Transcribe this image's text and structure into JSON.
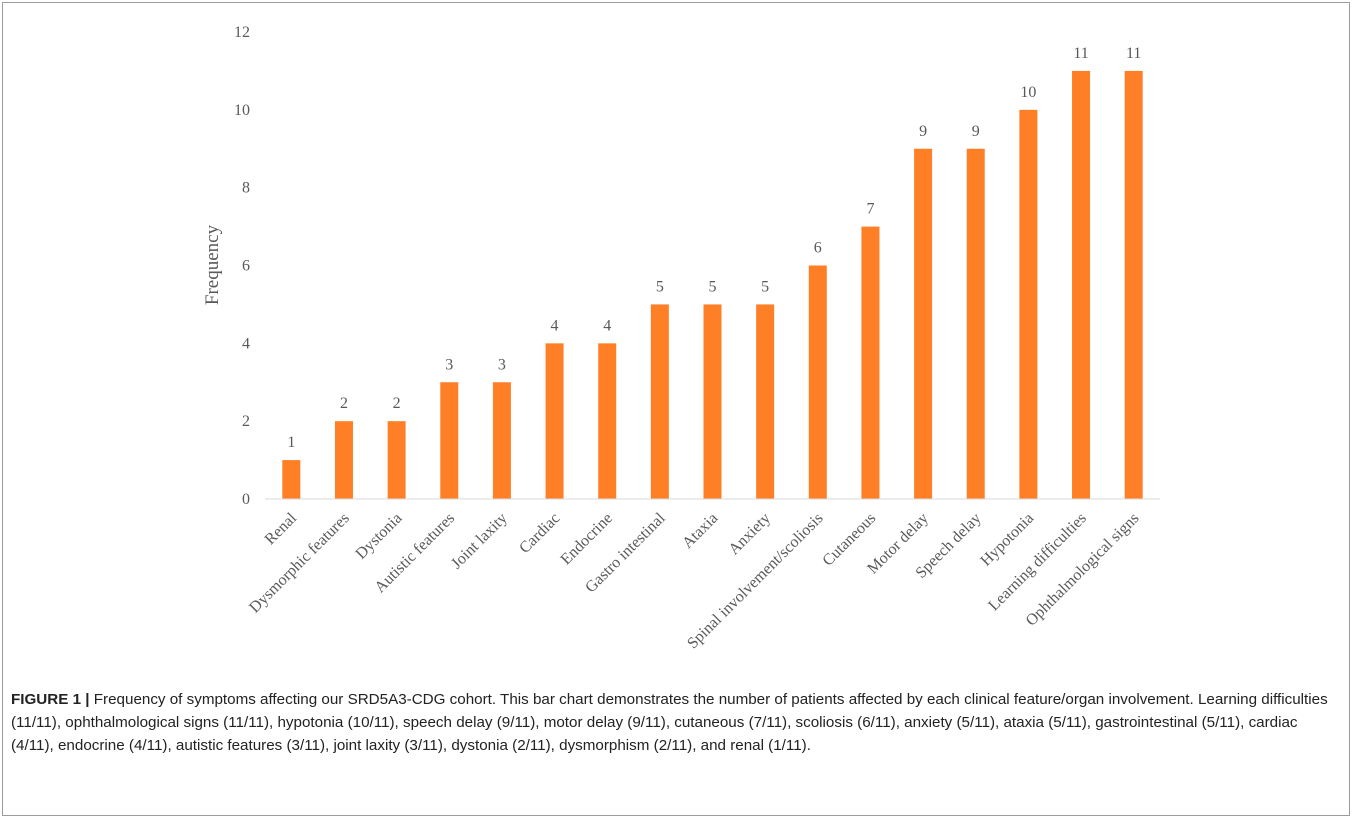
{
  "chart_data": {
    "type": "bar",
    "ylabel": "Frequency",
    "xlabel": "",
    "ylim": [
      0,
      12
    ],
    "yticks": [
      0,
      2,
      4,
      6,
      8,
      10,
      12
    ],
    "bar_color": "#FF7F27",
    "grid": false,
    "categories": [
      "Renal",
      "Dysmorphic features",
      "Dystonia",
      "Autistic features",
      "Joint laxity",
      "Cardiac",
      "Endocrine",
      "Gastro intestinal",
      "Ataxia",
      "Anxiety",
      "Spinal involvement/scoliosis",
      "Cutaneous",
      "Motor delay",
      "Speech delay",
      "Hypotonia",
      "Learning difficulties",
      "Ophthalmological signs"
    ],
    "values": [
      1,
      2,
      2,
      3,
      3,
      4,
      4,
      5,
      5,
      5,
      6,
      7,
      9,
      9,
      10,
      11,
      11
    ]
  },
  "caption": {
    "label": "FIGURE 1",
    "separator": "|",
    "text": "Frequency of symptoms affecting our SRD5A3-CDG cohort. This bar chart demonstrates the number of patients affected by each clinical feature/organ involvement. Learning difficulties (11/11), ophthalmological signs (11/11), hypotonia (10/11), speech delay (9/11), motor delay (9/11), cutaneous (7/11), scoliosis (6/11), anxiety (5/11), ataxia (5/11), gastrointestinal (5/11), cardiac (4/11), endocrine (4/11), autistic features (3/11), joint laxity (3/11), dystonia (2/11), dysmorphism (2/11), and renal (1/11)."
  }
}
